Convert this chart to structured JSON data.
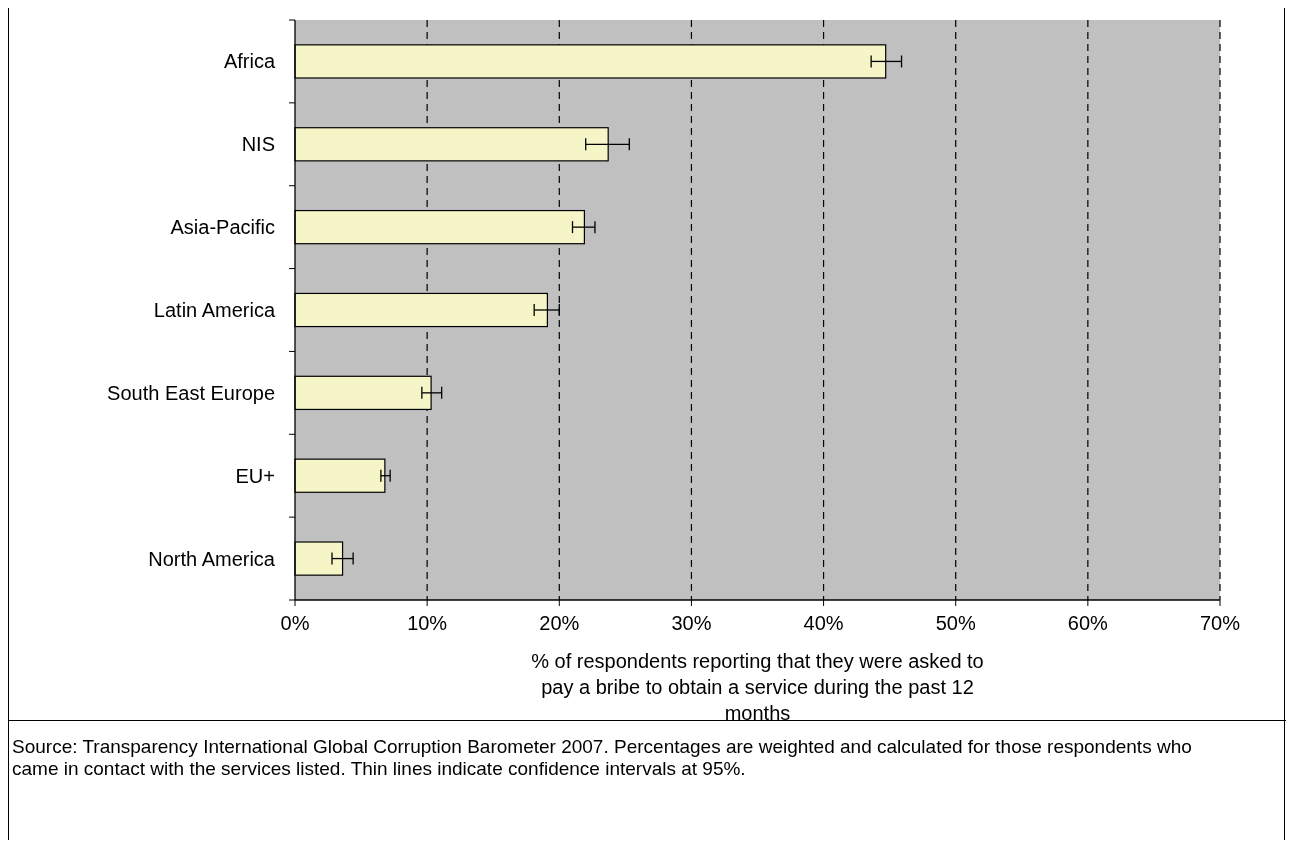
{
  "chart_data": {
    "type": "bar",
    "orientation": "horizontal",
    "categories": [
      "Africa",
      "NIS",
      "Asia-Pacific",
      "Latin America",
      "South East Europe",
      "EU+",
      "North America"
    ],
    "values": [
      44.7,
      23.7,
      21.9,
      19.1,
      10.3,
      6.8,
      3.6
    ],
    "errors": [
      [
        43.6,
        45.9
      ],
      [
        22.0,
        25.3
      ],
      [
        21.0,
        22.7
      ],
      [
        18.1,
        20.0
      ],
      [
        9.6,
        11.1
      ],
      [
        6.5,
        7.2
      ],
      [
        2.8,
        4.4
      ]
    ],
    "color": "#f5f5c8",
    "xlim": [
      0,
      70
    ],
    "xticks": [
      {
        "value": 0,
        "label": "0%"
      },
      {
        "value": 10,
        "label": "10%"
      },
      {
        "value": 20,
        "label": "20%"
      },
      {
        "value": 30,
        "label": "30%"
      },
      {
        "value": 40,
        "label": "40%"
      },
      {
        "value": 50,
        "label": "50%"
      },
      {
        "value": 60,
        "label": "60%"
      },
      {
        "value": 70,
        "label": "70%"
      }
    ],
    "xlabel": "% of respondents reporting that they were asked to pay a bribe to obtain a service during the past 12 months",
    "grid": "x",
    "line_style": "dashed",
    "annotations": [
      "Source: Transparency International Global Corruption Barometer 2007. Percentages are weighted and calculated for those respondents who came in contact with the services listed. Thin lines indicate confidence intervals at 95%."
    ]
  }
}
